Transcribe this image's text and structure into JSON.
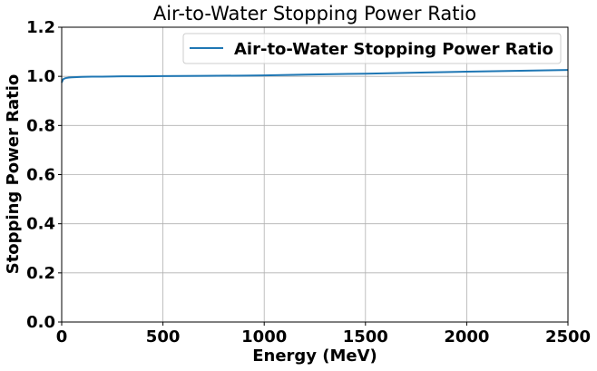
{
  "chart_data": {
    "type": "line",
    "title": "Air-to-Water Stopping Power Ratio",
    "xlabel": "Energy (MeV)",
    "ylabel": "Stopping Power Ratio",
    "xlim": [
      0,
      2500
    ],
    "ylim": [
      0,
      1.2
    ],
    "x_ticks": [
      "0",
      "500",
      "1000",
      "1500",
      "2000",
      "2500"
    ],
    "y_ticks": [
      "0.0",
      "0.2",
      "0.4",
      "0.6",
      "0.8",
      "1.0",
      "1.2"
    ],
    "grid": true,
    "legend_position": "top-right",
    "colors": {
      "series": "#1f77b4"
    },
    "series": [
      {
        "name": "Air-to-Water Stopping Power Ratio",
        "x": [
          0,
          5,
          10,
          20,
          35,
          50,
          75,
          100,
          150,
          200,
          300,
          400,
          500,
          700,
          900,
          1000,
          1200,
          1500,
          1800,
          2000,
          2200,
          2500
        ],
        "y": [
          0.975,
          0.985,
          0.99,
          0.993,
          0.995,
          0.996,
          0.997,
          0.998,
          0.999,
          0.999,
          1.0,
          1.0,
          1.001,
          1.002,
          1.003,
          1.004,
          1.007,
          1.011,
          1.016,
          1.019,
          1.022,
          1.026
        ]
      }
    ]
  }
}
